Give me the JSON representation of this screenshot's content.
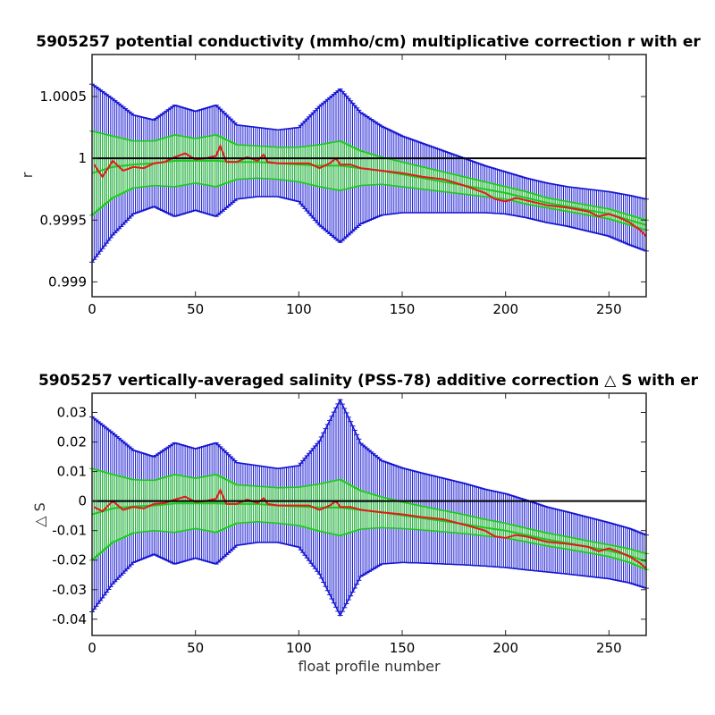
{
  "chart_data": [
    {
      "type": "line",
      "title": "5905257 potential conductivity (mmho/cm) multiplicative correction r with er",
      "xlabel": "",
      "ylabel": "r",
      "xlim": [
        0,
        268
      ],
      "ylim": [
        0.99888,
        1.00084
      ],
      "xticks": [
        "0",
        "50",
        "100",
        "150",
        "200",
        "250"
      ],
      "yticks": [
        "0.999",
        "0.9995",
        "1",
        "1.0005"
      ],
      "reference_line": 1,
      "grid": false,
      "series": [
        {
          "role": "correction",
          "color": "#e8161b",
          "x": [
            1,
            5,
            10,
            15,
            20,
            25,
            30,
            35,
            40,
            45,
            50,
            55,
            60,
            62,
            65,
            70,
            75,
            80,
            83,
            85,
            90,
            95,
            100,
            105,
            110,
            115,
            118,
            120,
            125,
            130,
            140,
            150,
            160,
            170,
            180,
            190,
            195,
            200,
            205,
            210,
            220,
            230,
            240,
            245,
            250,
            255,
            260,
            265,
            268
          ],
          "y": [
            0.99995,
            0.99985,
            0.99998,
            0.9999,
            0.99993,
            0.99992,
            0.99996,
            0.99997,
            1.00001,
            1.00004,
            0.99999,
            1.0,
            1.00002,
            1.0001,
            0.99997,
            0.99997,
            1.00001,
            0.99998,
            1.00003,
            0.99997,
            0.99996,
            0.99996,
            0.99996,
            0.99996,
            0.99992,
            0.99996,
            1.0,
            0.99995,
            0.99995,
            0.99992,
            0.9999,
            0.99988,
            0.99985,
            0.99983,
            0.99978,
            0.99972,
            0.99967,
            0.99965,
            0.99968,
            0.99966,
            0.99962,
            0.9996,
            0.99957,
            0.99953,
            0.99955,
            0.99952,
            0.99948,
            0.99942,
            0.99937
          ]
        },
        {
          "role": "centre",
          "color": "#1ec81e",
          "x": [
            0,
            10,
            20,
            30,
            40,
            50,
            60,
            70,
            80,
            90,
            100,
            110,
            120,
            130,
            140,
            150,
            160,
            170,
            180,
            190,
            200,
            210,
            220,
            230,
            240,
            250,
            260,
            268
          ],
          "y": [
            0.99988,
            0.99993,
            0.99995,
            0.99996,
            0.99998,
            0.99998,
            0.99998,
            0.99997,
            0.99997,
            0.99996,
            0.99995,
            0.99994,
            0.99994,
            0.99992,
            0.9999,
            0.99987,
            0.99984,
            0.99981,
            0.99978,
            0.99975,
            0.99972,
            0.99968,
            0.99964,
            0.99961,
            0.99958,
            0.99955,
            0.9995,
            0.99946
          ]
        }
      ],
      "error_bars": [
        {
          "color": "#1ec81e",
          "x": [
            0,
            10,
            20,
            30,
            40,
            50,
            60,
            70,
            80,
            90,
            100,
            110,
            120,
            130,
            140,
            150,
            160,
            170,
            180,
            190,
            200,
            210,
            220,
            230,
            240,
            250,
            260,
            268
          ],
          "half_width": [
            0.00034,
            0.00025,
            0.00019,
            0.00018,
            0.00021,
            0.00018,
            0.00021,
            0.00014,
            0.00013,
            0.00013,
            0.00014,
            0.00017,
            0.0002,
            0.00014,
            0.00011,
            0.0001,
            9e-05,
            8e-05,
            7e-05,
            6e-05,
            5e-05,
            5e-05,
            4e-05,
            4e-05,
            4e-05,
            4e-05,
            4e-05,
            4e-05
          ]
        },
        {
          "color": "#1414d2",
          "x": [
            0,
            10,
            20,
            30,
            40,
            50,
            60,
            70,
            80,
            90,
            100,
            110,
            120,
            130,
            140,
            150,
            160,
            170,
            180,
            190,
            200,
            210,
            220,
            230,
            240,
            250,
            260,
            268
          ],
          "half_width": [
            0.00072,
            0.00055,
            0.0004,
            0.00035,
            0.00045,
            0.0004,
            0.00045,
            0.0003,
            0.00028,
            0.00027,
            0.0003,
            0.00048,
            0.00062,
            0.00045,
            0.00036,
            0.00031,
            0.00028,
            0.00025,
            0.00022,
            0.00019,
            0.00017,
            0.00016,
            0.00016,
            0.00016,
            0.00017,
            0.00018,
            0.0002,
            0.00021
          ]
        }
      ]
    },
    {
      "type": "line",
      "title": "5905257 vertically-averaged salinity (PSS-78) additive correction △ S with er",
      "xlabel": "float profile number",
      "ylabel": "△ S",
      "xlim": [
        0,
        268
      ],
      "ylim": [
        -0.0455,
        0.0365
      ],
      "xticks": [
        "0",
        "50",
        "100",
        "150",
        "200",
        "250"
      ],
      "yticks": [
        "-0.04",
        "-0.03",
        "-0.02",
        "-0.01",
        "0",
        "0.01",
        "0.02",
        "0.03"
      ],
      "reference_line": 0,
      "grid": false,
      "series": [
        {
          "role": "correction",
          "color": "#e8161b",
          "x": [
            1,
            5,
            10,
            15,
            20,
            25,
            30,
            35,
            40,
            45,
            50,
            55,
            60,
            62,
            65,
            70,
            75,
            80,
            83,
            85,
            90,
            95,
            100,
            105,
            110,
            115,
            118,
            120,
            125,
            130,
            140,
            150,
            160,
            170,
            180,
            190,
            195,
            200,
            205,
            210,
            220,
            230,
            240,
            245,
            250,
            255,
            260,
            265,
            268
          ],
          "y": [
            -0.002,
            -0.0035,
            0.0,
            -0.003,
            -0.002,
            -0.0025,
            -0.001,
            -0.0007,
            0.0005,
            0.0015,
            -0.0003,
            0.0,
            0.0008,
            0.0037,
            -0.001,
            -0.001,
            0.0005,
            -0.0007,
            0.001,
            -0.001,
            -0.0015,
            -0.0015,
            -0.0015,
            -0.0015,
            -0.003,
            -0.0015,
            0.0,
            -0.002,
            -0.002,
            -0.003,
            -0.0038,
            -0.0045,
            -0.0055,
            -0.0062,
            -0.008,
            -0.01,
            -0.012,
            -0.0125,
            -0.0115,
            -0.012,
            -0.0138,
            -0.0145,
            -0.0155,
            -0.017,
            -0.016,
            -0.0172,
            -0.0188,
            -0.021,
            -0.0228
          ]
        },
        {
          "role": "centre",
          "color": "#1ec81e",
          "x": [
            0,
            10,
            20,
            30,
            40,
            50,
            60,
            70,
            80,
            90,
            100,
            110,
            120,
            130,
            140,
            150,
            160,
            170,
            180,
            190,
            200,
            210,
            220,
            230,
            240,
            250,
            260,
            268
          ],
          "y": [
            -0.0045,
            -0.0025,
            -0.0018,
            -0.0015,
            -0.0008,
            -0.0008,
            -0.0008,
            -0.001,
            -0.001,
            -0.0015,
            -0.0018,
            -0.0022,
            -0.0022,
            -0.003,
            -0.0038,
            -0.0048,
            -0.0058,
            -0.0068,
            -0.0078,
            -0.009,
            -0.01,
            -0.0115,
            -0.013,
            -0.0142,
            -0.0155,
            -0.0168,
            -0.0185,
            -0.0205
          ]
        }
      ],
      "error_bars": [
        {
          "color": "#1ec81e",
          "x": [
            0,
            10,
            20,
            30,
            40,
            50,
            60,
            70,
            80,
            90,
            100,
            110,
            120,
            130,
            140,
            150,
            160,
            170,
            180,
            190,
            200,
            210,
            220,
            230,
            240,
            250,
            260,
            268
          ],
          "half_width": [
            0.0155,
            0.0115,
            0.009,
            0.0085,
            0.0098,
            0.0085,
            0.0098,
            0.0065,
            0.006,
            0.006,
            0.0065,
            0.008,
            0.0095,
            0.0065,
            0.0052,
            0.0045,
            0.004,
            0.0036,
            0.0032,
            0.0028,
            0.0025,
            0.0023,
            0.0022,
            0.0021,
            0.002,
            0.002,
            0.0023,
            0.0027
          ]
        },
        {
          "color": "#1414d2",
          "x": [
            0,
            10,
            20,
            30,
            40,
            50,
            60,
            70,
            80,
            90,
            100,
            110,
            120,
            130,
            140,
            150,
            160,
            170,
            180,
            190,
            200,
            210,
            220,
            230,
            240,
            250,
            260,
            268
          ],
          "half_width": [
            0.033,
            0.0255,
            0.019,
            0.0165,
            0.0205,
            0.0185,
            0.0205,
            0.014,
            0.013,
            0.0125,
            0.0138,
            0.0225,
            0.0365,
            0.0225,
            0.0175,
            0.016,
            0.0152,
            0.0145,
            0.0138,
            0.013,
            0.0125,
            0.0118,
            0.011,
            0.0105,
            0.01,
            0.0095,
            0.0092,
            0.009
          ]
        }
      ]
    }
  ]
}
